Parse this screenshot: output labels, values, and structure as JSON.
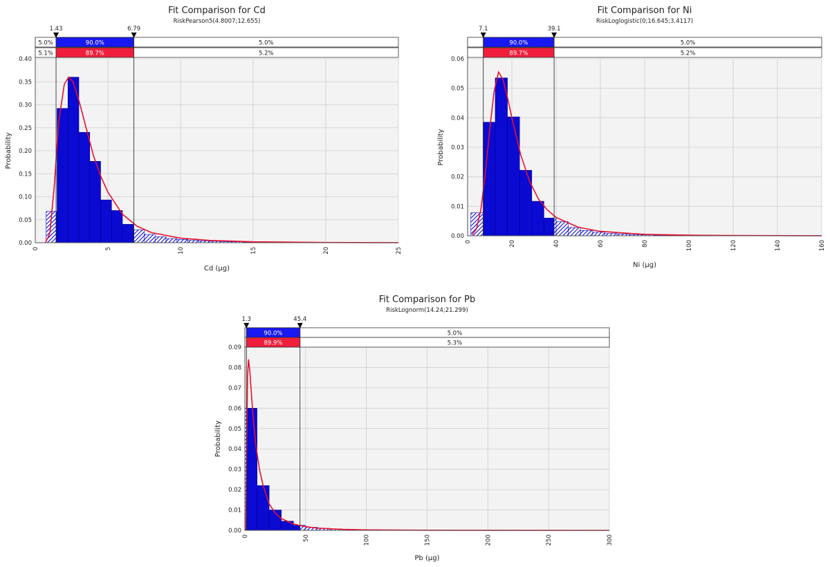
{
  "chart_data": [
    {
      "type": "bar",
      "title": "Fit Comparison for Cd",
      "subtitle": "RiskPearson5(4.8007;12.655)",
      "xlabel": "Cd (µg)",
      "ylabel": "Probability",
      "xlim": [
        0,
        25
      ],
      "ylim": [
        0,
        0.4
      ],
      "xticks": [
        0,
        5,
        10,
        15,
        20,
        25
      ],
      "xtick_labels": [
        "0",
        "5",
        "10",
        "15",
        "20",
        "25"
      ],
      "yticks": [
        0,
        0.05,
        0.1,
        0.15,
        0.2,
        0.25,
        0.3,
        0.35,
        0.4
      ],
      "ytick_labels": [
        "0.00",
        "0.05",
        "0.10",
        "0.15",
        "0.20",
        "0.25",
        "0.30",
        "0.35",
        "0.40"
      ],
      "grid": true,
      "bin_width": 0.75,
      "bins": [
        {
          "x0": 0.75,
          "value": 0.068
        },
        {
          "x0": 1.5,
          "value": 0.292
        },
        {
          "x0": 2.25,
          "value": 0.36
        },
        {
          "x0": 3.0,
          "value": 0.24
        },
        {
          "x0": 3.75,
          "value": 0.177
        },
        {
          "x0": 4.5,
          "value": 0.093
        },
        {
          "x0": 5.25,
          "value": 0.07
        },
        {
          "x0": 6.0,
          "value": 0.04
        },
        {
          "x0": 6.75,
          "value": 0.028
        },
        {
          "x0": 7.5,
          "value": 0.018
        },
        {
          "x0": 8.25,
          "value": 0.013
        },
        {
          "x0": 9.0,
          "value": 0.009
        },
        {
          "x0": 9.75,
          "value": 0.007
        },
        {
          "x0": 10.5,
          "value": 0.005
        },
        {
          "x0": 11.25,
          "value": 0.004
        },
        {
          "x0": 12.0,
          "value": 0.003
        },
        {
          "x0": 12.75,
          "value": 0.002
        },
        {
          "x0": 13.5,
          "value": 0.002
        },
        {
          "x0": 14.25,
          "value": 0.001
        },
        {
          "x0": 15.0,
          "value": 0.001
        },
        {
          "x0": 15.75,
          "value": 0.001
        }
      ],
      "fit_curve": {
        "x": [
          0.7,
          1.0,
          1.3,
          1.6,
          2.0,
          2.3,
          2.6,
          3.0,
          3.5,
          4.0,
          4.5,
          5.0,
          6.0,
          7.0,
          8.0,
          10.0,
          12.0,
          15.0,
          20.0,
          25.0
        ],
        "y": [
          0.0,
          0.02,
          0.12,
          0.26,
          0.345,
          0.36,
          0.35,
          0.31,
          0.25,
          0.19,
          0.145,
          0.11,
          0.062,
          0.036,
          0.022,
          0.01,
          0.005,
          0.002,
          0.0005,
          0.0001
        ]
      },
      "markers": {
        "left": 1.43,
        "right": 6.79,
        "left_label": "1.43",
        "right_label": "6.79"
      },
      "band_top": {
        "left": "5.0%",
        "middle": "90.0%",
        "right": "5.0%"
      },
      "band_bottom": {
        "left": "5.1%",
        "middle": "89.7%",
        "right": "5.2%"
      },
      "colors": {
        "histogram": "#0a0ad2",
        "fit": "#e8102a",
        "band_top": "#1818f0",
        "band_bottom": "#f01e3c"
      }
    },
    {
      "type": "bar",
      "title": "Fit Comparison for Ni",
      "subtitle": "RiskLoglogistic(0;16.645;3.4117)",
      "xlabel": "Ni (µg)",
      "ylabel": "Probability",
      "xlim": [
        0,
        160
      ],
      "ylim": [
        0,
        0.06
      ],
      "xticks": [
        0,
        20,
        40,
        60,
        80,
        100,
        120,
        140,
        160
      ],
      "xtick_labels": [
        "0",
        "20",
        "40",
        "60",
        "80",
        "100",
        "120",
        "140",
        "160"
      ],
      "yticks": [
        0,
        0.01,
        0.02,
        0.03,
        0.04,
        0.05,
        0.06
      ],
      "ytick_labels": [
        "0.00",
        "0.01",
        "0.02",
        "0.03",
        "0.04",
        "0.05",
        "0.06"
      ],
      "grid": true,
      "bin_width": 5.5,
      "bins": [
        {
          "x0": 1.5,
          "value": 0.0078
        },
        {
          "x0": 7.0,
          "value": 0.0385
        },
        {
          "x0": 12.5,
          "value": 0.0535
        },
        {
          "x0": 18.0,
          "value": 0.0403
        },
        {
          "x0": 23.5,
          "value": 0.0222
        },
        {
          "x0": 29.0,
          "value": 0.0117
        },
        {
          "x0": 34.5,
          "value": 0.006
        },
        {
          "x0": 40.0,
          "value": 0.0048
        },
        {
          "x0": 45.5,
          "value": 0.0028
        },
        {
          "x0": 51.0,
          "value": 0.0018
        },
        {
          "x0": 56.5,
          "value": 0.0012
        },
        {
          "x0": 62.0,
          "value": 0.0008
        },
        {
          "x0": 67.5,
          "value": 0.0006
        },
        {
          "x0": 73.0,
          "value": 0.0004
        },
        {
          "x0": 78.5,
          "value": 0.0003
        },
        {
          "x0": 84.0,
          "value": 0.0002
        },
        {
          "x0": 89.5,
          "value": 0.0002
        },
        {
          "x0": 95.0,
          "value": 0.0001
        }
      ],
      "fit_curve": {
        "x": [
          2,
          4,
          6,
          8,
          10,
          12,
          14,
          16,
          18,
          20,
          24,
          28,
          32,
          36,
          40,
          50,
          60,
          80,
          100,
          120,
          160
        ],
        "y": [
          0.0003,
          0.0023,
          0.0088,
          0.021,
          0.036,
          0.049,
          0.0555,
          0.053,
          0.047,
          0.04,
          0.0275,
          0.0185,
          0.0125,
          0.0088,
          0.0062,
          0.0029,
          0.0015,
          0.0005,
          0.0002,
          0.0001,
          3e-05
        ]
      },
      "markers": {
        "left": 7.1,
        "right": 39.1,
        "left_label": "7.1",
        "right_label": "39.1"
      },
      "band_top": {
        "left": "",
        "middle": "90.0%",
        "right": "5.0%"
      },
      "band_bottom": {
        "left": "",
        "middle": "89.7%",
        "right": "5.2%"
      },
      "colors": {
        "histogram": "#0a0ad2",
        "fit": "#e8102a",
        "band_top": "#1818f0",
        "band_bottom": "#f01e3c"
      }
    },
    {
      "type": "bar",
      "title": "Fit Comparison for Pb",
      "subtitle": "RiskLognorm(14.24;21.299)",
      "xlabel": "Pb (µg)",
      "ylabel": "Probability",
      "xlim": [
        0,
        300
      ],
      "ylim": [
        0,
        0.09
      ],
      "xticks": [
        0,
        50,
        100,
        150,
        200,
        250,
        300
      ],
      "xtick_labels": [
        "0",
        "50",
        "100",
        "150",
        "200",
        "250",
        "300"
      ],
      "yticks": [
        0,
        0.01,
        0.02,
        0.03,
        0.04,
        0.05,
        0.06,
        0.07,
        0.08,
        0.09
      ],
      "ytick_labels": [
        "0.00",
        "0.01",
        "0.02",
        "0.03",
        "0.04",
        "0.05",
        "0.06",
        "0.07",
        "0.08",
        "0.09"
      ],
      "grid": true,
      "bin_width": 10,
      "bins": [
        {
          "x0": 0,
          "value": 0.045
        },
        {
          "x0": 0,
          "value": 0.06
        },
        {
          "x0": 10,
          "value": 0.022
        },
        {
          "x0": 20,
          "value": 0.01
        },
        {
          "x0": 30,
          "value": 0.0045
        },
        {
          "x0": 40,
          "value": 0.0025
        },
        {
          "x0": 50,
          "value": 0.0015
        },
        {
          "x0": 60,
          "value": 0.001
        },
        {
          "x0": 70,
          "value": 0.0007
        },
        {
          "x0": 80,
          "value": 0.0005
        },
        {
          "x0": 90,
          "value": 0.0004
        },
        {
          "x0": 100,
          "value": 0.0003
        },
        {
          "x0": 110,
          "value": 0.0002
        }
      ],
      "fit_curve": {
        "x": [
          0.8,
          1.5,
          2.2,
          3.0,
          4.0,
          5.5,
          7.0,
          9.0,
          12.0,
          15.0,
          20.0,
          25.0,
          30.0,
          40.0,
          50.0,
          60.0,
          80.0,
          100.0,
          150.0,
          300.0
        ],
        "y": [
          0.0,
          0.04,
          0.076,
          0.084,
          0.079,
          0.066,
          0.054,
          0.042,
          0.03,
          0.022,
          0.013,
          0.0085,
          0.0058,
          0.0031,
          0.0018,
          0.0011,
          0.0005,
          0.00025,
          8e-05,
          1e-05
        ]
      },
      "markers": {
        "left": 1.3,
        "right": 45.4,
        "left_label": "1.3",
        "right_label": "45.4"
      },
      "band_top": {
        "left": "",
        "middle": "90.0%",
        "right": "5.0%"
      },
      "band_bottom": {
        "left": "",
        "middle": "89.9%",
        "right": "5.3%"
      },
      "colors": {
        "histogram": "#0a0ad2",
        "fit": "#e8102a",
        "band_top": "#1818f0",
        "band_bottom": "#f01e3c"
      }
    }
  ]
}
